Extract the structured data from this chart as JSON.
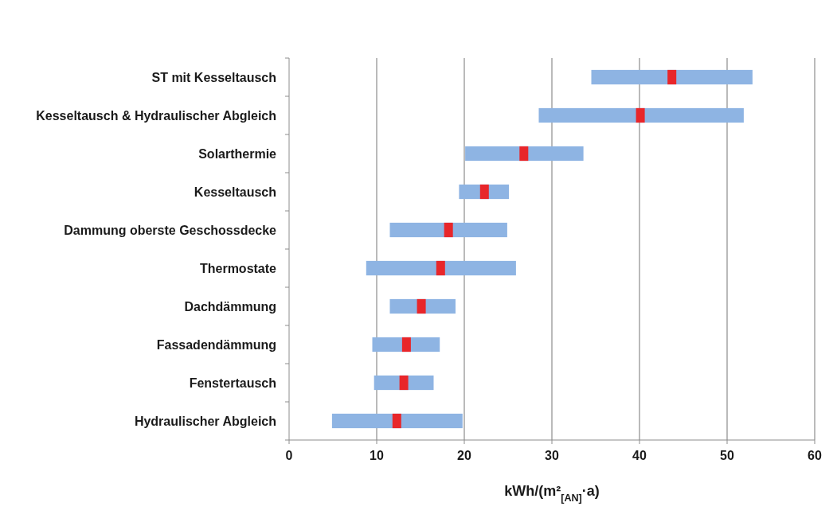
{
  "chart_data": {
    "type": "bar",
    "orientation": "horizontal",
    "xlabel": "kWh/(m²$_{[AN]}$·a)",
    "categories": [
      "ST mit Kesseltausch",
      "Kesseltausch & Hydraulischer Abgleich",
      "Solarthermie",
      "Kesseltausch",
      "Dammung oberste Geschossdecke",
      "Thermostate",
      "Dachdämmung",
      "Fassadendämmung",
      "Fenstertausch",
      "Hydraulischer Abgleich"
    ],
    "series": [
      {
        "color": "#8eb4e3",
        "base": [
          34.5,
          28.5,
          20.1,
          19.4,
          11.5,
          8.8,
          11.5,
          9.5,
          9.7,
          4.9
        ],
        "values": [
          18.4,
          23.4,
          13.5,
          5.7,
          13.4,
          17.1,
          7.5,
          7.7,
          6.8,
          14.9
        ]
      },
      {
        "type": "scatter",
        "color": "#e8262a",
        "marker": "square",
        "values": [
          43.7,
          40.1,
          26.8,
          22.3,
          18.2,
          17.3,
          15.1,
          13.4,
          13.1,
          12.3
        ]
      }
    ],
    "xlim": [
      0,
      60
    ],
    "xticks": [
      0,
      10,
      20,
      30,
      40,
      50,
      60
    ],
    "grid": "x"
  }
}
